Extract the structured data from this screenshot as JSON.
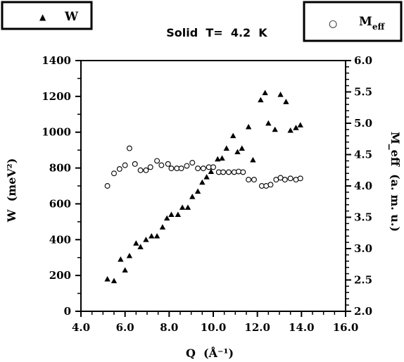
{
  "chart_data": {
    "type": "scatter",
    "title": "Solid  T=  4.2  K",
    "xlabel": "Q  (Å⁻¹)",
    "ylabel_left": "W  (meV²)",
    "ylabel_right": "M_eff  (a. m. u.)",
    "xlim": [
      4.0,
      16.0
    ],
    "ylim_left": [
      0,
      1400
    ],
    "ylim_right": [
      2.0,
      6.0
    ],
    "x_ticks": [
      "4.0",
      "6.0",
      "8.0",
      "10.0",
      "12.0",
      "14.0",
      "16.0"
    ],
    "y_left_ticks": [
      "0",
      "200",
      "400",
      "600",
      "800",
      "1000",
      "1200",
      "1400"
    ],
    "y_right_ticks": [
      "2.0",
      "2.5",
      "3.0",
      "3.5",
      "4.0",
      "4.5",
      "5.0",
      "5.5",
      "6.0"
    ],
    "grid": false,
    "series": [
      {
        "name": "W",
        "axis": "left",
        "marker": "filled-triangle",
        "x": [
          5.2,
          5.5,
          5.8,
          6.0,
          6.2,
          6.5,
          6.7,
          6.95,
          7.2,
          7.45,
          7.7,
          7.9,
          8.1,
          8.4,
          8.6,
          8.85,
          9.05,
          9.3,
          9.5,
          9.7,
          9.9,
          10.2,
          10.4,
          10.6,
          10.9,
          11.1,
          11.3,
          11.6,
          11.8,
          12.15,
          12.35,
          12.5,
          12.8,
          13.05,
          13.3,
          13.5,
          13.75,
          13.95
        ],
        "y": [
          180,
          170,
          290,
          230,
          310,
          380,
          360,
          400,
          420,
          420,
          470,
          520,
          540,
          540,
          580,
          580,
          640,
          670,
          720,
          750,
          780,
          850,
          855,
          910,
          980,
          890,
          910,
          1030,
          845,
          1180,
          1220,
          1050,
          1015,
          1210,
          1170,
          1010,
          1025,
          1040
        ]
      },
      {
        "name": "M_eff",
        "axis": "right",
        "marker": "open-circle",
        "x": [
          5.2,
          5.5,
          5.75,
          6.0,
          6.2,
          6.45,
          6.7,
          6.95,
          7.15,
          7.45,
          7.65,
          7.95,
          8.1,
          8.35,
          8.55,
          8.8,
          9.05,
          9.3,
          9.55,
          9.8,
          10.0,
          10.25,
          10.45,
          10.7,
          10.95,
          11.15,
          11.35,
          11.6,
          11.85,
          12.2,
          12.4,
          12.6,
          12.85,
          13.05,
          13.25,
          13.5,
          13.75,
          13.95
        ],
        "y": [
          4.0,
          4.2,
          4.27,
          4.33,
          4.6,
          4.35,
          4.25,
          4.25,
          4.3,
          4.4,
          4.33,
          4.35,
          4.28,
          4.28,
          4.28,
          4.32,
          4.37,
          4.28,
          4.28,
          4.3,
          4.3,
          4.22,
          4.22,
          4.22,
          4.22,
          4.23,
          4.22,
          4.1,
          4.1,
          4.0,
          4.0,
          4.02,
          4.1,
          4.13,
          4.1,
          4.12,
          4.1,
          4.12
        ]
      }
    ],
    "legend": [
      {
        "position": "top-left",
        "label": "W",
        "symbol": "▲"
      },
      {
        "position": "top-right",
        "label": "M",
        "subscript": "eff",
        "symbol": "○"
      }
    ]
  }
}
